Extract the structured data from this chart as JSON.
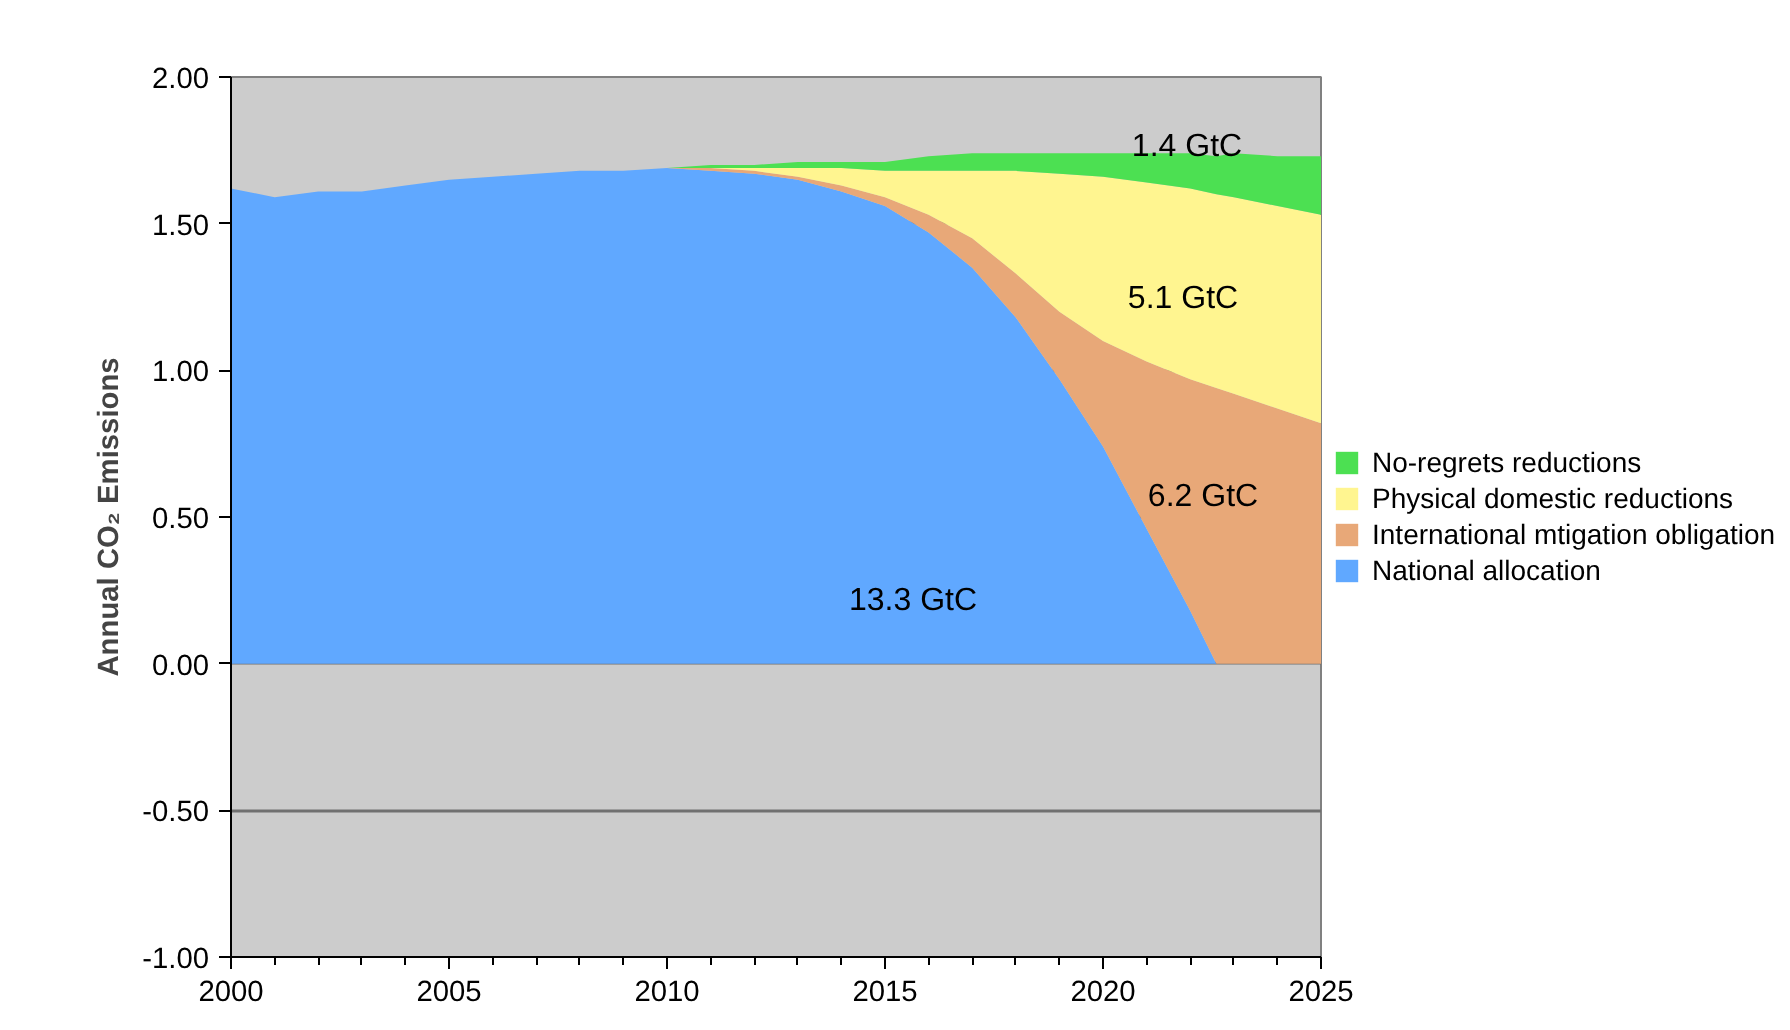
{
  "chart_data": {
    "type": "area",
    "stacked": true,
    "ylabel": "Annual CO₂ Emissions",
    "x": [
      2000,
      2001,
      2002,
      2003,
      2004,
      2005,
      2006,
      2007,
      2008,
      2009,
      2010,
      2011,
      2012,
      2013,
      2014,
      2015,
      2016,
      2017,
      2018,
      2019,
      2020,
      2021,
      2022,
      2022.6,
      2023,
      2024,
      2025
    ],
    "xlim": [
      2000,
      2025
    ],
    "xticks": [
      2000,
      2005,
      2010,
      2015,
      2020,
      2025
    ],
    "ylim": [
      -1,
      2
    ],
    "yticks": [
      {
        "value": -1,
        "label": "-1.00"
      },
      {
        "value": -0.5,
        "label": "-0.50"
      },
      {
        "value": 0,
        "label": "0.00"
      },
      {
        "value": 0.5,
        "label": "0.50"
      },
      {
        "value": 1,
        "label": "1.00"
      },
      {
        "value": 1.5,
        "label": "1.50"
      },
      {
        "value": 2,
        "label": "2.00"
      }
    ],
    "grid": "y",
    "legend": "right",
    "series": [
      {
        "name": "National allocation",
        "color": "#60a8ff",
        "values": [
          1.62,
          1.59,
          1.61,
          1.61,
          1.63,
          1.65,
          1.66,
          1.67,
          1.68,
          1.68,
          1.69,
          1.68,
          1.67,
          1.65,
          1.61,
          1.56,
          1.47,
          1.35,
          1.18,
          0.97,
          0.74,
          0.46,
          0.18,
          0,
          0,
          0,
          0
        ]
      },
      {
        "name": "International mtigation obligation",
        "color": "#e8a878",
        "values": [
          null,
          null,
          null,
          null,
          null,
          null,
          null,
          null,
          null,
          null,
          0,
          0.01,
          0.01,
          0.01,
          0.02,
          0.03,
          0.06,
          0.1,
          0.15,
          0.23,
          0.36,
          0.57,
          0.79,
          0.94,
          0.92,
          0.87,
          0.82
        ]
      },
      {
        "name": "Physical domestic reductions",
        "color": "#fff590",
        "values": [
          null,
          null,
          null,
          null,
          null,
          null,
          null,
          null,
          null,
          null,
          0,
          0,
          0.01,
          0.03,
          0.06,
          0.09,
          0.15,
          0.23,
          0.35,
          0.47,
          0.56,
          0.61,
          0.65,
          0.66,
          0.67,
          0.69,
          0.71
        ]
      },
      {
        "name": "No-regrets reductions",
        "color": "#4ce052",
        "values": [
          null,
          null,
          null,
          null,
          null,
          null,
          null,
          null,
          null,
          null,
          0,
          0.01,
          0.01,
          0.02,
          0.02,
          0.03,
          0.05,
          0.06,
          0.06,
          0.07,
          0.08,
          0.1,
          0.12,
          0.13,
          0.15,
          0.17,
          0.2
        ]
      }
    ],
    "annotations": [
      "1.4 GtC",
      "5.1 GtC",
      "6.2 GtC",
      "13.3 GtC"
    ]
  }
}
